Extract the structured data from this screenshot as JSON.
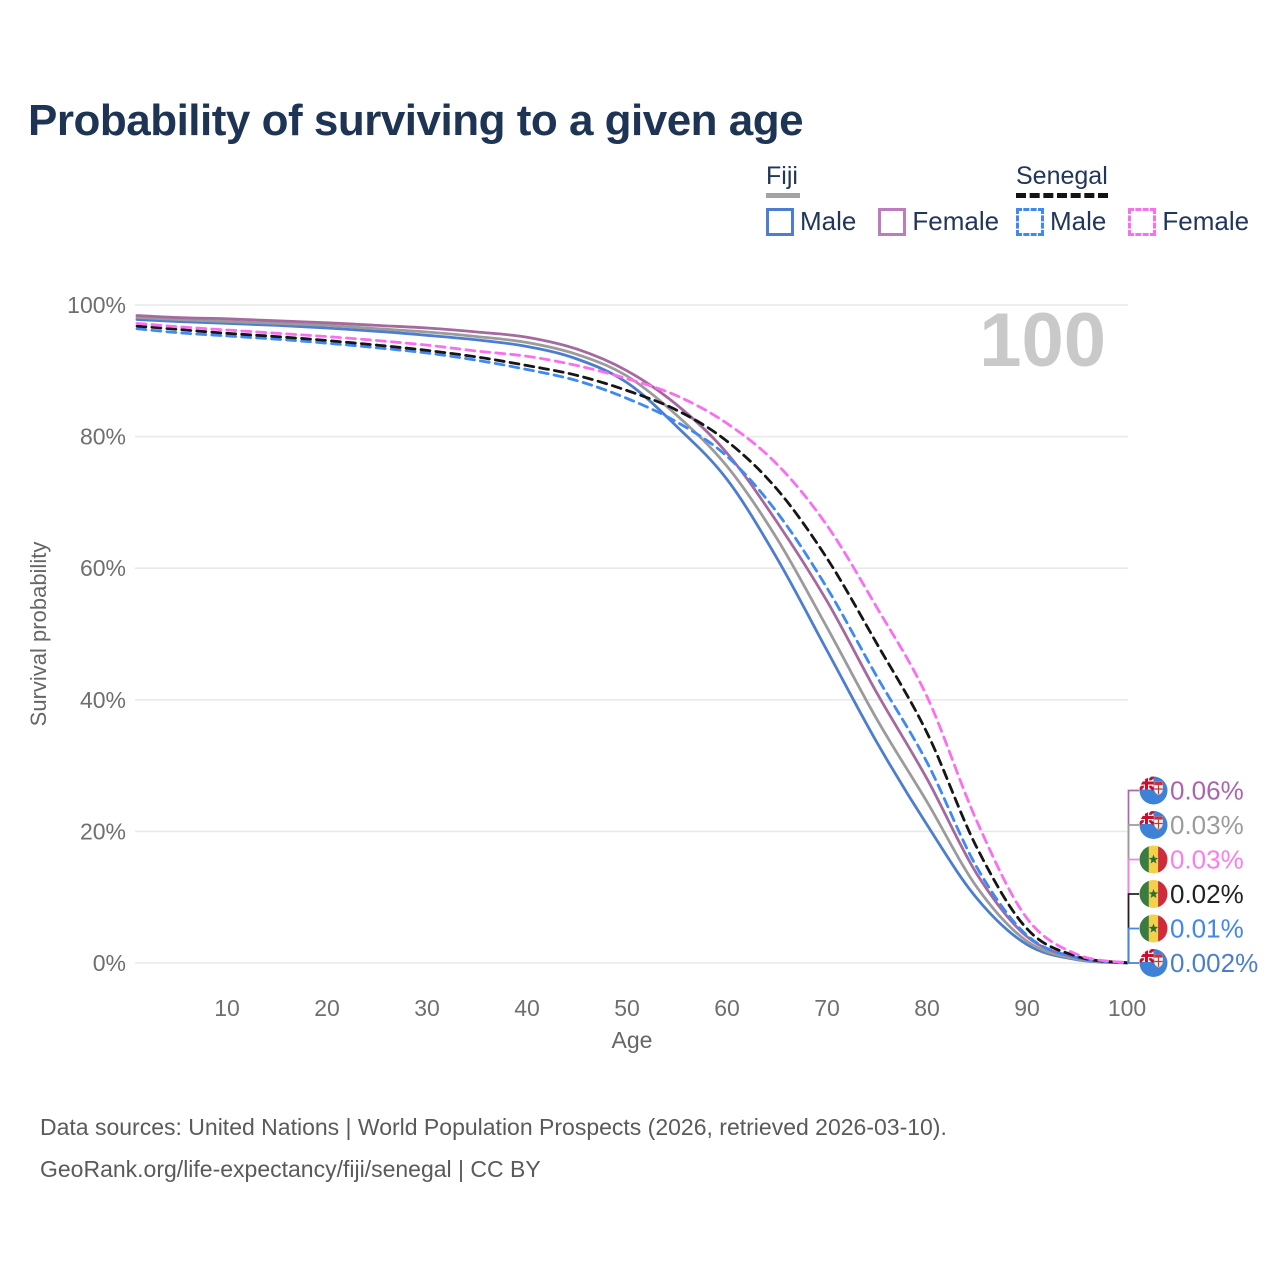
{
  "title": "Probability of surviving to a given age",
  "watermark": "100",
  "legend": {
    "groups": [
      {
        "name": "Fiji",
        "line_style": "solid",
        "underline_color": "#A3A3A3",
        "items": [
          {
            "label": "Male",
            "color": "#4C7DD0",
            "dash": false
          },
          {
            "label": "Female",
            "color": "#BC7CBE",
            "dash": false
          }
        ]
      },
      {
        "name": "Senegal",
        "line_style": "dashed",
        "underline_color": "#141414",
        "items": [
          {
            "label": "Male",
            "color": "#3E89F4",
            "dash": true
          },
          {
            "label": "Female",
            "color": "#FA6FEF",
            "dash": true
          }
        ]
      }
    ]
  },
  "chart_data": {
    "type": "line",
    "title": "Probability of surviving to a given age",
    "xlabel": "Age",
    "ylabel": "Survival probability",
    "xlim": [
      1,
      100
    ],
    "ylim": [
      0,
      100
    ],
    "grid": "horizontal",
    "legend_position": "top-right",
    "x_ticks": [
      10,
      20,
      30,
      40,
      50,
      60,
      70,
      80,
      90,
      100
    ],
    "y_ticks": [
      0,
      20,
      40,
      60,
      80,
      100
    ],
    "y_tick_suffix": "%",
    "ages": [
      1,
      5,
      10,
      15,
      20,
      25,
      30,
      35,
      40,
      45,
      50,
      55,
      60,
      65,
      70,
      75,
      80,
      85,
      90,
      95,
      100
    ],
    "series": [
      {
        "id": "fiji-male",
        "country": "Fiji",
        "sex": "Male",
        "color": "#4C7DD0",
        "dash": false,
        "values": [
          97.8,
          97.5,
          97.2,
          96.9,
          96.5,
          96.0,
          95.4,
          94.7,
          93.7,
          91.8,
          88.2,
          81.5,
          73.5,
          61.5,
          47.5,
          33.5,
          21.0,
          9.8,
          2.8,
          0.5,
          0.002
        ]
      },
      {
        "id": "fiji-both",
        "country": "Fiji",
        "sex": "Both",
        "color": "#9B9B9B",
        "dash": false,
        "values": [
          98.1,
          97.8,
          97.5,
          97.2,
          96.9,
          96.4,
          95.9,
          95.2,
          94.3,
          92.5,
          89.2,
          83.2,
          75.5,
          64.5,
          51.0,
          37.0,
          24.5,
          11.5,
          3.3,
          0.6,
          0.03
        ]
      },
      {
        "id": "fiji-female",
        "country": "Fiji",
        "sex": "Female",
        "color": "#A569A0",
        "dash": false,
        "values": [
          98.4,
          98.1,
          97.9,
          97.6,
          97.3,
          96.9,
          96.5,
          95.9,
          95.1,
          93.3,
          90.0,
          84.8,
          77.5,
          67.0,
          55.0,
          41.0,
          28.0,
          13.5,
          4.0,
          0.8,
          0.06
        ]
      },
      {
        "id": "senegal-male",
        "country": "Senegal",
        "sex": "Male",
        "color": "#3E89F4",
        "dash": true,
        "values": [
          96.4,
          95.8,
          95.3,
          94.8,
          94.2,
          93.5,
          92.7,
          91.6,
          90.2,
          88.5,
          85.8,
          82.2,
          77.0,
          68.5,
          57.0,
          43.5,
          30.5,
          14.5,
          4.2,
          0.8,
          0.01
        ]
      },
      {
        "id": "senegal-both",
        "country": "Senegal",
        "sex": "Both",
        "color": "#161616",
        "dash": true,
        "values": [
          96.8,
          96.3,
          95.7,
          95.2,
          94.6,
          93.9,
          93.1,
          92.1,
          90.8,
          89.3,
          87.0,
          84.0,
          79.3,
          72.0,
          61.5,
          48.5,
          35.0,
          17.5,
          5.2,
          1.0,
          0.02
        ]
      },
      {
        "id": "senegal-female",
        "country": "Senegal",
        "sex": "Female",
        "color": "#FA6FEF",
        "dash": true,
        "values": [
          97.2,
          96.7,
          96.2,
          95.7,
          95.2,
          94.6,
          93.9,
          93.0,
          92.2,
          90.8,
          88.8,
          86.2,
          82.0,
          75.8,
          66.5,
          54.0,
          40.5,
          21.5,
          6.8,
          1.3,
          0.03
        ]
      }
    ],
    "end_labels": [
      {
        "flag": "fiji",
        "series": "fiji-female",
        "value": "0.06%",
        "color": "#AC64AC"
      },
      {
        "flag": "fiji",
        "series": "fiji-both",
        "value": "0.03%",
        "color": "#9B9B9B"
      },
      {
        "flag": "senegal",
        "series": "senegal-female",
        "value": "0.03%",
        "color": "#FA7DEB"
      },
      {
        "flag": "senegal",
        "series": "senegal-both",
        "value": "0.02%",
        "color": "#222222"
      },
      {
        "flag": "senegal",
        "series": "senegal-male",
        "value": "0.01%",
        "color": "#4186F0"
      },
      {
        "flag": "fiji",
        "series": "fiji-male",
        "value": "0.002%",
        "color": "#4C7DD0"
      }
    ]
  },
  "footer": {
    "line1": "Data sources: United Nations | World Population Prospects (2026, retrieved 2026-03-10).",
    "line2": "GeoRank.org/life-expectancy/fiji/senegal | CC BY"
  }
}
